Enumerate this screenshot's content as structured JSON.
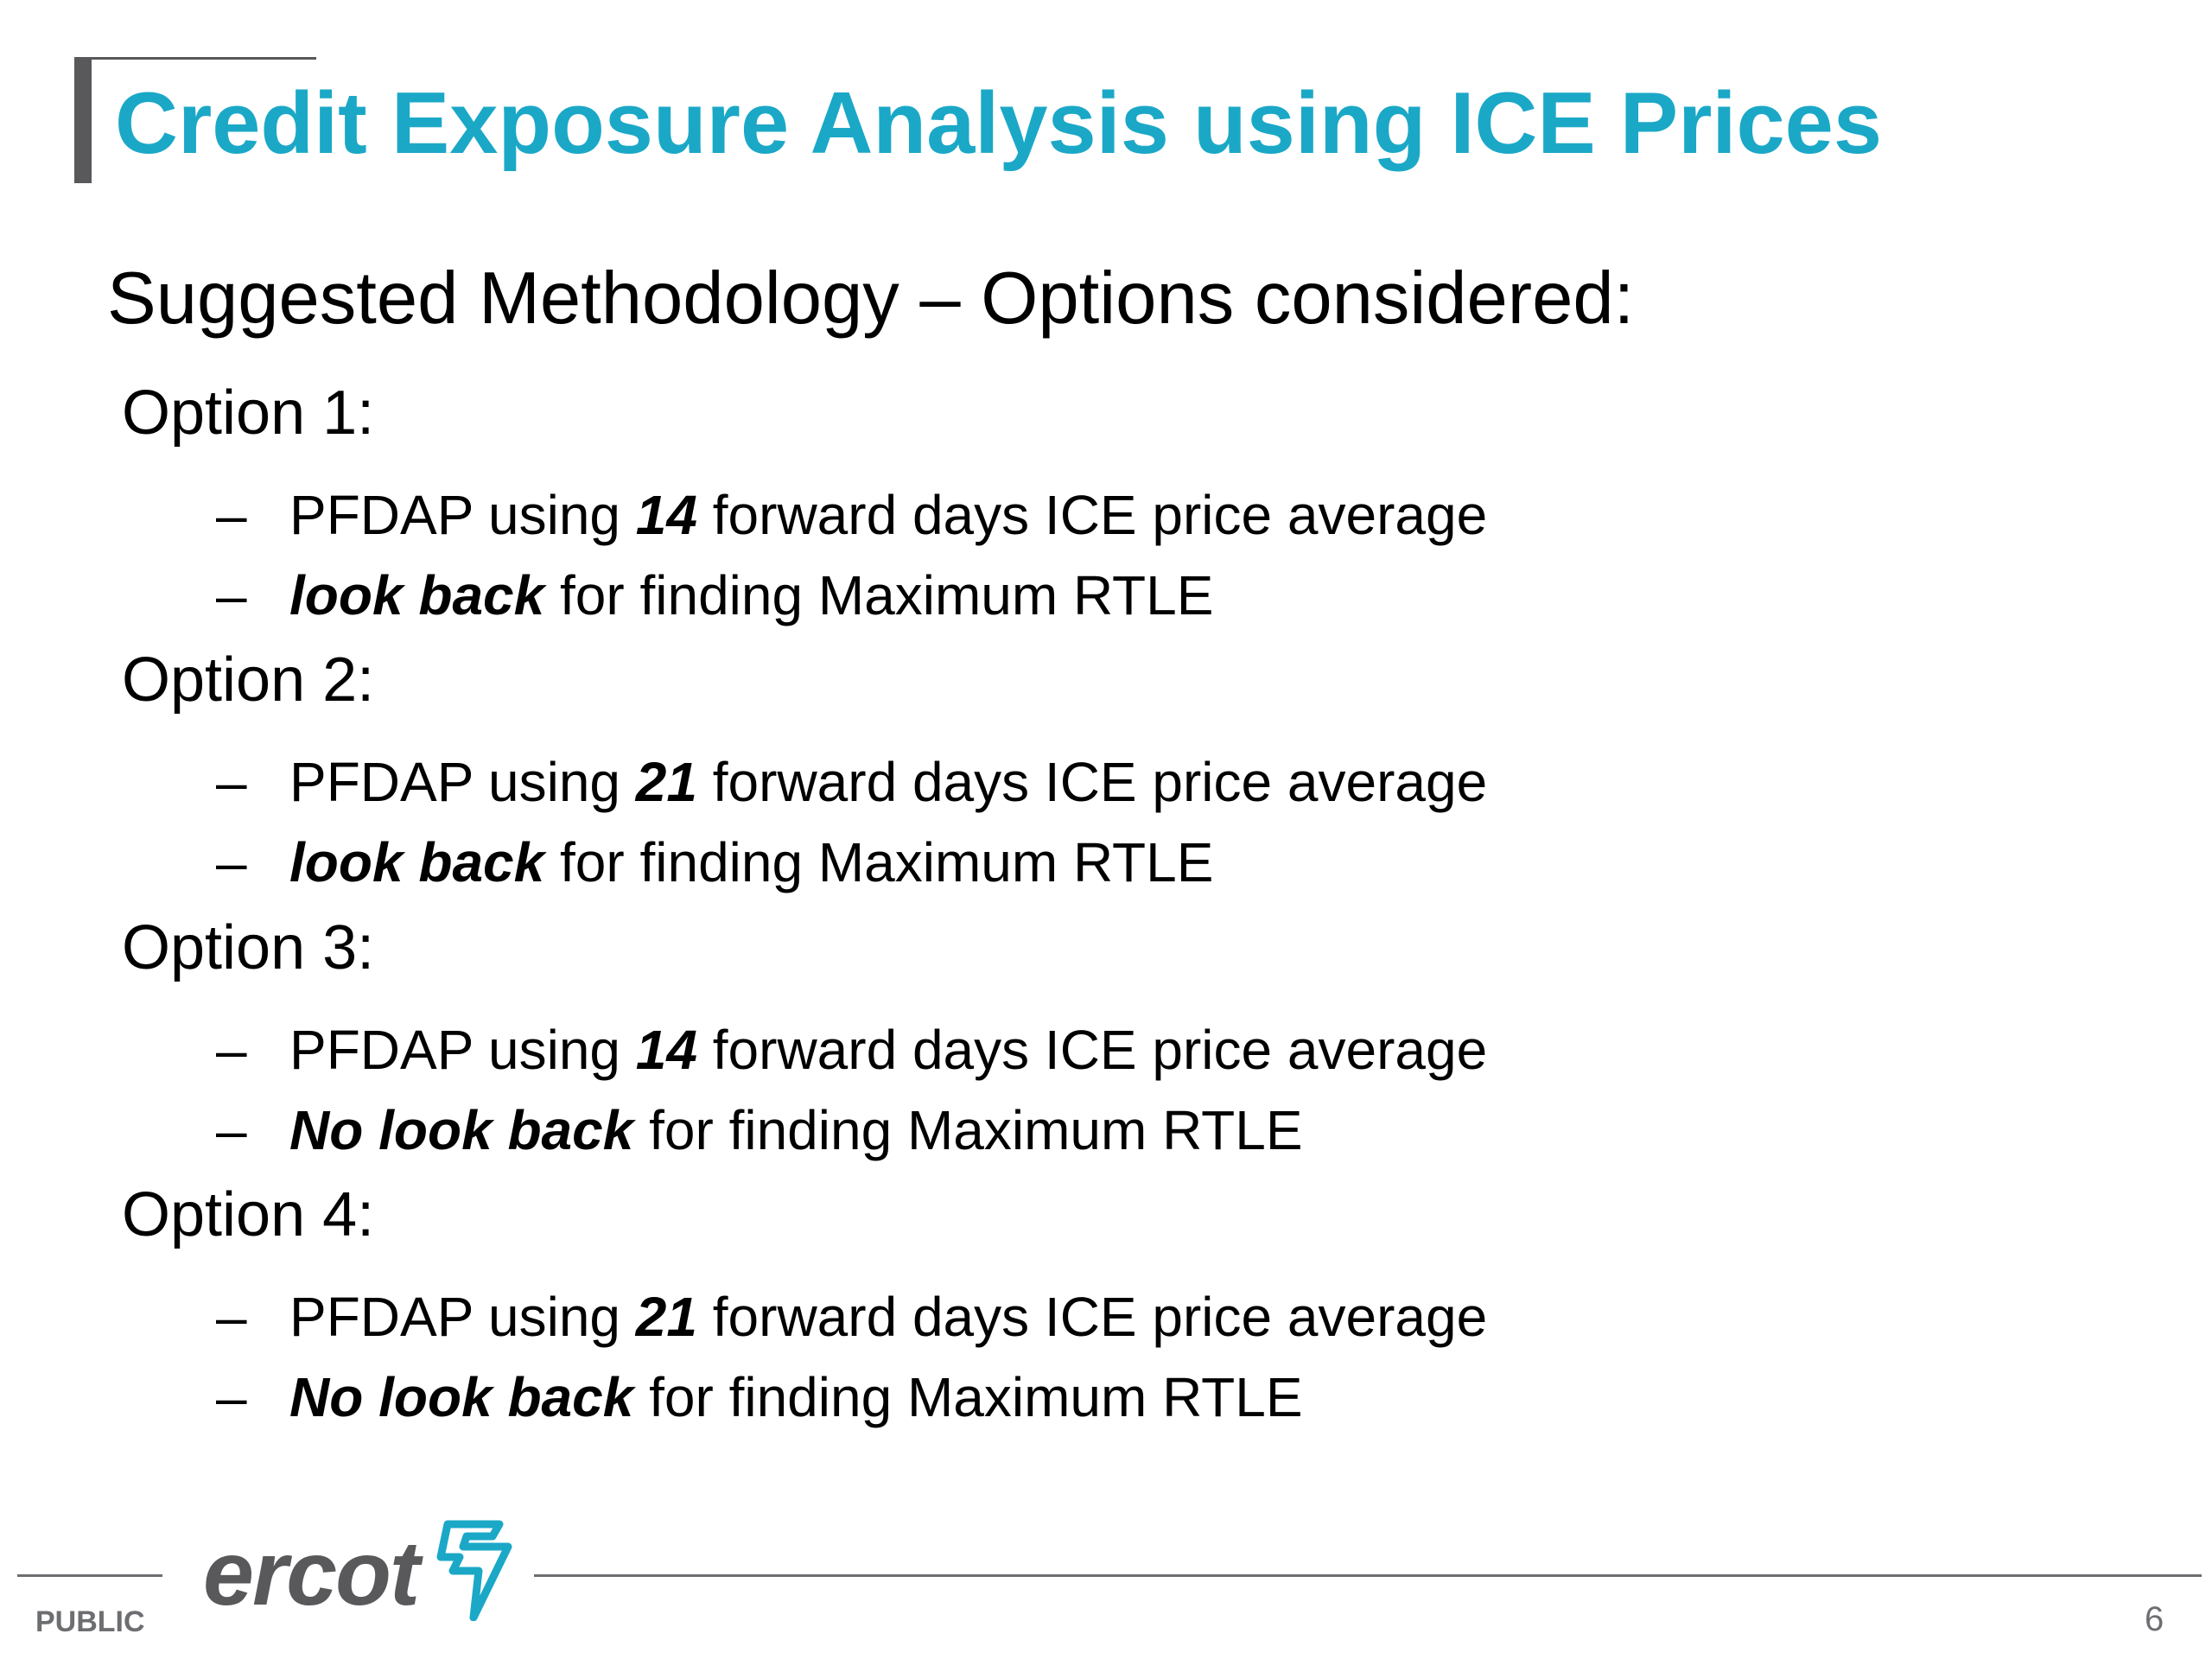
{
  "slide": {
    "title": "Credit Exposure Analysis using ICE Prices",
    "subtitle": "Suggested Methodology – Options considered:",
    "options": [
      {
        "heading": "Option 1:",
        "bullets": [
          {
            "dash": "–",
            "pre": "PFDAP using ",
            "emph": "14",
            "post": " forward days ICE price average"
          },
          {
            "dash": "–",
            "pre": "",
            "emph": "look back",
            "post": " for finding Maximum RTLE"
          }
        ]
      },
      {
        "heading": "Option 2:",
        "bullets": [
          {
            "dash": "–",
            "pre": "PFDAP using ",
            "emph": "21",
            "post": " forward days ICE price average"
          },
          {
            "dash": "–",
            "pre": "",
            "emph": "look back",
            "post": " for finding Maximum RTLE"
          }
        ]
      },
      {
        "heading": "Option 3:",
        "bullets": [
          {
            "dash": "–",
            "pre": "PFDAP using ",
            "emph": "14",
            "post": " forward days ICE price average"
          },
          {
            "dash": "–",
            "pre": "",
            "emph": "No look back",
            "post": " for finding Maximum RTLE"
          }
        ]
      },
      {
        "heading": "Option 4:",
        "bullets": [
          {
            "dash": "–",
            "pre": "PFDAP using ",
            "emph": "21",
            "post": " forward days ICE price average"
          },
          {
            "dash": "–",
            "pre": "",
            "emph": "No look back",
            "post": " for finding Maximum RTLE"
          }
        ]
      }
    ]
  },
  "footer": {
    "logo_text": "ercot",
    "logo_icon": "ercot-lightning-icon",
    "classification": "PUBLIC",
    "page_number": "6"
  },
  "colors": {
    "title": "#1ba8c7",
    "accent_bar": "#59595b",
    "logo_gray": "#59595b",
    "logo_bolt": "#1ba8c7",
    "footer_text": "#6d6e71"
  }
}
